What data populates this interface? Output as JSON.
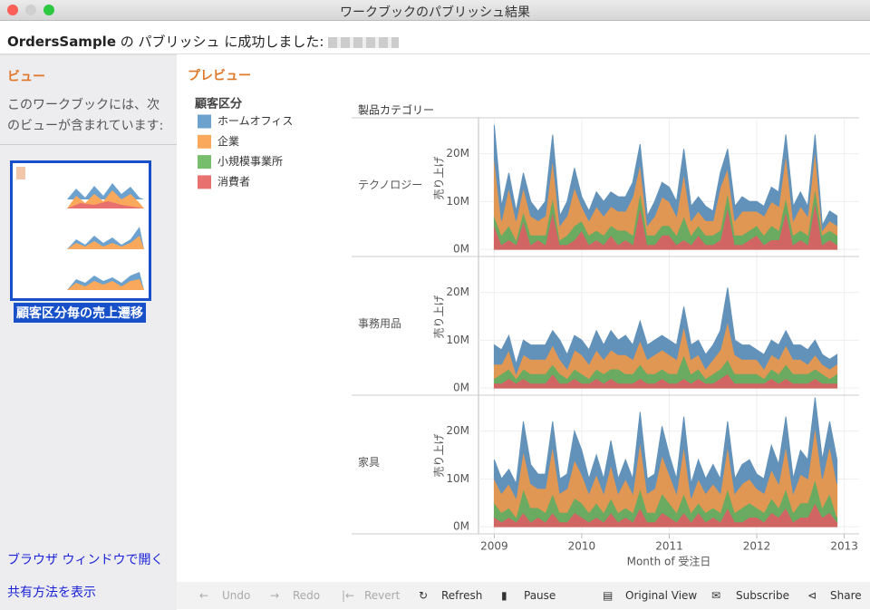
{
  "window": {
    "title": "ワークブックのパブリッシュ結果"
  },
  "header": {
    "workbook": "OrdersSample",
    "message": "の パブリッシュ に成功しました:"
  },
  "sidebar": {
    "title": "ビュー",
    "description": "このワークブックには、次のビューが含まれています:",
    "views": [
      "顧客区分毎の売上遷移"
    ],
    "links": [
      "ブラウザ ウィンドウで開く",
      "共有方法を表示"
    ]
  },
  "preview": {
    "title": "プレビュー"
  },
  "toolbar": {
    "buttons": [
      "Undo",
      "Redo",
      "Revert",
      "Refresh",
      "Pause",
      "Original View",
      "Subscribe",
      "Share"
    ]
  },
  "chart_data": {
    "type": "area",
    "stacked": true,
    "grid": true,
    "legend_title": "顧客区分",
    "facet_title": "製品カテゴリー",
    "facets": [
      "テクノロジー",
      "事務用品",
      "家具"
    ],
    "x_label": "Month of 受注日",
    "y_label": "売り上げ",
    "xlim": [
      2008.82,
      2013.17
    ],
    "xticks": [
      2009,
      2010,
      2011,
      2012,
      2013
    ],
    "ylim": [
      -1.5,
      27.5
    ],
    "yticks": [
      {
        "value": 0,
        "label": "0M"
      },
      {
        "value": 10,
        "label": "10M"
      },
      {
        "value": 20,
        "label": "20M"
      }
    ],
    "x": [
      2009,
      2009.083,
      2009.167,
      2009.25,
      2009.333,
      2009.417,
      2009.5,
      2009.583,
      2009.667,
      2009.75,
      2009.833,
      2009.917,
      2010,
      2010.083,
      2010.167,
      2010.25,
      2010.333,
      2010.417,
      2010.5,
      2010.583,
      2010.667,
      2010.75,
      2010.833,
      2010.917,
      2011,
      2011.083,
      2011.167,
      2011.25,
      2011.333,
      2011.417,
      2011.5,
      2011.583,
      2011.667,
      2011.75,
      2011.833,
      2011.917,
      2012,
      2012.083,
      2012.167,
      2012.25,
      2012.333,
      2012.417,
      2012.5,
      2012.583,
      2012.667,
      2012.75,
      2012.833,
      2012.917
    ],
    "series": [
      {
        "name": "消費者",
        "color": "#e8706e",
        "values": [
          [
            5,
            1,
            2,
            1,
            6,
            1,
            2,
            1,
            8,
            1,
            1,
            2,
            4,
            1,
            2,
            1,
            3,
            1,
            2,
            1,
            9,
            1,
            1,
            3,
            3,
            1,
            2,
            1,
            3,
            1,
            1,
            2,
            9,
            1,
            1,
            2,
            3,
            1,
            2,
            2,
            8,
            1,
            2,
            1,
            10,
            1,
            2,
            1
          ],
          [
            1,
            1,
            2,
            1,
            2,
            1,
            1,
            1,
            3,
            1,
            1,
            2,
            1,
            1,
            2,
            1,
            2,
            1,
            1,
            1,
            2,
            1,
            1,
            2,
            1,
            1,
            2,
            1,
            2,
            1,
            1,
            2,
            3,
            1,
            1,
            1,
            1,
            1,
            2,
            1,
            2,
            1,
            1,
            1,
            2,
            1,
            1,
            1
          ],
          [
            2,
            1,
            2,
            1,
            3,
            1,
            2,
            1,
            3,
            1,
            1,
            3,
            2,
            1,
            2,
            1,
            3,
            1,
            2,
            1,
            4,
            1,
            1,
            3,
            2,
            1,
            3,
            1,
            3,
            1,
            2,
            1,
            4,
            1,
            1,
            2,
            2,
            1,
            3,
            2,
            4,
            1,
            2,
            2,
            5,
            2,
            3,
            1
          ]
        ]
      },
      {
        "name": "小規模事業所",
        "color": "#76bd6c",
        "values": [
          [
            2,
            2,
            3,
            1,
            2,
            2,
            1,
            2,
            3,
            1,
            2,
            3,
            2,
            2,
            2,
            2,
            2,
            3,
            2,
            2,
            3,
            2,
            2,
            2,
            2,
            2,
            5,
            2,
            2,
            2,
            2,
            2,
            3,
            2,
            2,
            2,
            2,
            2,
            3,
            2,
            3,
            2,
            2,
            2,
            3,
            2,
            2,
            2
          ],
          [
            1,
            2,
            2,
            1,
            2,
            2,
            2,
            2,
            2,
            2,
            1,
            2,
            2,
            1,
            2,
            2,
            2,
            3,
            2,
            2,
            3,
            2,
            2,
            2,
            2,
            2,
            5,
            2,
            2,
            1,
            2,
            2,
            3,
            2,
            2,
            2,
            2,
            1,
            2,
            2,
            3,
            2,
            2,
            2,
            2,
            2,
            1,
            2
          ],
          [
            3,
            2,
            2,
            1,
            5,
            3,
            2,
            2,
            4,
            2,
            2,
            3,
            3,
            2,
            3,
            2,
            3,
            2,
            2,
            2,
            4,
            2,
            2,
            4,
            3,
            2,
            4,
            2,
            2,
            2,
            2,
            2,
            4,
            2,
            3,
            3,
            2,
            2,
            3,
            2,
            4,
            2,
            3,
            3,
            5,
            2,
            4,
            1
          ]
        ]
      },
      {
        "name": "企業",
        "color": "#f9a85c",
        "values": [
          [
            12,
            3,
            8,
            4,
            5,
            4,
            3,
            4,
            8,
            3,
            4,
            8,
            3,
            3,
            5,
            4,
            4,
            4,
            4,
            8,
            6,
            2,
            4,
            6,
            5,
            4,
            9,
            3,
            3,
            3,
            3,
            9,
            5,
            3,
            5,
            4,
            3,
            4,
            5,
            5,
            9,
            3,
            5,
            4,
            8,
            1,
            2,
            2
          ],
          [
            3,
            2,
            4,
            1,
            3,
            3,
            3,
            3,
            4,
            3,
            2,
            4,
            4,
            3,
            4,
            3,
            4,
            3,
            4,
            3,
            5,
            3,
            4,
            4,
            4,
            3,
            6,
            3,
            3,
            2,
            3,
            4,
            8,
            4,
            3,
            3,
            3,
            2,
            3,
            3,
            4,
            3,
            3,
            2,
            3,
            2,
            2,
            2
          ],
          [
            5,
            4,
            5,
            4,
            8,
            5,
            4,
            5,
            10,
            4,
            5,
            8,
            6,
            4,
            6,
            4,
            7,
            4,
            6,
            4,
            10,
            4,
            5,
            8,
            6,
            4,
            10,
            3,
            5,
            4,
            5,
            4,
            9,
            4,
            5,
            5,
            4,
            4,
            6,
            5,
            9,
            4,
            6,
            5,
            11,
            6,
            10,
            7
          ]
        ]
      },
      {
        "name": "ホームオフィス",
        "color": "#6da2cf",
        "values": [
          [
            7,
            3,
            3,
            2,
            3,
            3,
            2,
            3,
            5,
            2,
            3,
            4,
            2,
            2,
            3,
            3,
            3,
            3,
            3,
            3,
            4,
            2,
            3,
            3,
            3,
            3,
            5,
            3,
            3,
            3,
            2,
            3,
            4,
            3,
            3,
            2,
            2,
            2,
            3,
            3,
            4,
            3,
            3,
            2,
            3,
            1,
            2,
            2
          ],
          [
            4,
            3,
            3,
            2,
            3,
            3,
            3,
            3,
            3,
            4,
            3,
            3,
            3,
            3,
            4,
            3,
            4,
            3,
            4,
            3,
            4,
            3,
            3,
            3,
            3,
            3,
            4,
            3,
            3,
            3,
            3,
            4,
            7,
            3,
            3,
            3,
            2,
            3,
            3,
            3,
            3,
            3,
            3,
            3,
            3,
            2,
            2,
            2
          ],
          [
            4,
            3,
            3,
            3,
            6,
            4,
            3,
            3,
            5,
            3,
            3,
            6,
            5,
            3,
            4,
            3,
            5,
            3,
            4,
            3,
            6,
            3,
            3,
            6,
            4,
            3,
            6,
            3,
            4,
            3,
            4,
            3,
            5,
            3,
            4,
            4,
            3,
            3,
            5,
            4,
            6,
            3,
            5,
            4,
            6,
            4,
            5,
            5
          ]
        ]
      }
    ]
  }
}
